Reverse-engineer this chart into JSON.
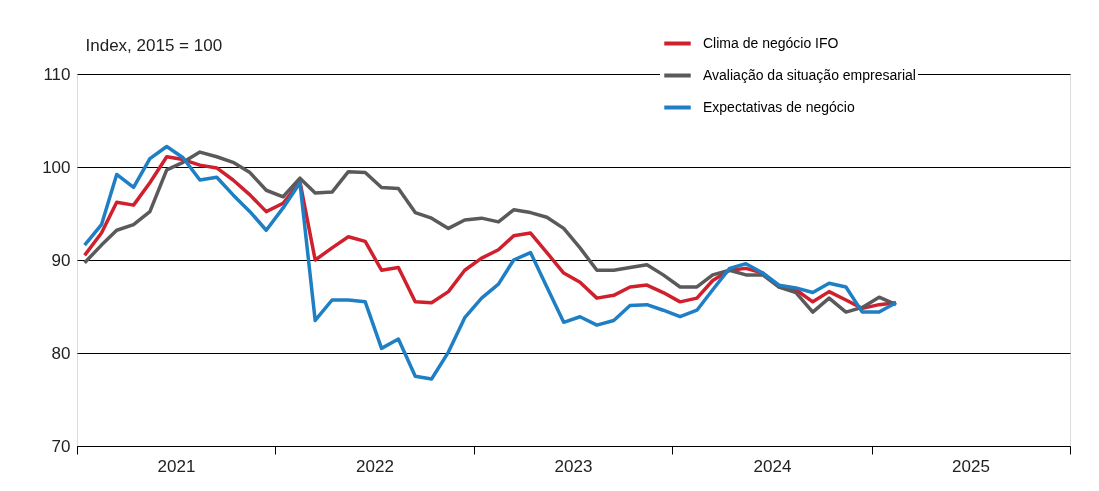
{
  "chart_data": {
    "type": "line",
    "ylabel": "Index, 2015 = 100",
    "x": [
      "2021-01-15",
      "2021-02-15",
      "2021-03-15",
      "2021-04-15",
      "2021-05-15",
      "2021-06-15",
      "2021-07-15",
      "2021-08-15",
      "2021-09-15",
      "2021-10-15",
      "2021-11-15",
      "2021-12-15",
      "2022-01-15",
      "2022-02-15",
      "2022-03-15",
      "2022-04-15",
      "2022-05-15",
      "2022-06-15",
      "2022-07-15",
      "2022-08-15",
      "2022-09-15",
      "2022-10-15",
      "2022-11-15",
      "2022-12-15",
      "2023-01-15",
      "2023-02-15",
      "2023-03-15",
      "2023-04-15",
      "2023-05-15",
      "2023-06-15",
      "2023-07-15",
      "2023-08-15",
      "2023-09-15",
      "2023-10-15",
      "2023-11-15",
      "2023-12-15",
      "2024-01-15",
      "2024-02-15",
      "2024-03-15",
      "2024-04-15",
      "2024-05-15",
      "2024-06-15",
      "2024-07-15",
      "2024-08-15",
      "2024-09-15",
      "2024-10-15",
      "2024-11-15",
      "2024-12-15",
      "2025-01-15",
      "2025-02-15"
    ],
    "series": [
      {
        "name": "Clima de negócio IFO",
        "color": "#d0202e",
        "values": [
          90.5,
          92.9,
          96.2,
          95.9,
          98.3,
          101.1,
          100.8,
          100.2,
          99.9,
          98.6,
          97.0,
          95.2,
          96.1,
          98.4,
          90.0,
          91.3,
          92.5,
          92.0,
          88.9,
          89.2,
          85.5,
          85.4,
          86.6,
          88.9,
          90.2,
          91.1,
          92.6,
          92.9,
          90.8,
          88.6,
          87.6,
          85.9,
          86.2,
          87.1,
          87.3,
          86.5,
          85.5,
          85.9,
          87.8,
          88.9,
          89.1,
          88.6,
          87.1,
          86.8,
          85.5,
          86.6,
          85.7,
          84.8,
          85.2,
          85.4
        ]
      },
      {
        "name": "Avaliação da situação empresarial",
        "color": "#5a5a5a",
        "values": [
          89.7,
          91.6,
          93.2,
          93.8,
          95.2,
          99.7,
          100.5,
          101.6,
          101.1,
          100.5,
          99.4,
          97.5,
          96.8,
          98.8,
          97.2,
          97.3,
          99.5,
          99.4,
          97.8,
          97.7,
          95.1,
          94.5,
          93.4,
          94.3,
          94.5,
          94.1,
          95.4,
          95.1,
          94.6,
          93.4,
          91.3,
          88.9,
          88.9,
          89.2,
          89.5,
          88.4,
          87.1,
          87.1,
          88.4,
          88.9,
          88.4,
          88.4,
          87.1,
          86.5,
          84.4,
          85.9,
          84.4,
          84.9,
          86.0,
          85.2
        ]
      },
      {
        "name": "Expectativas de negócio",
        "color": "#1f7fc4",
        "values": [
          91.6,
          93.8,
          99.2,
          97.8,
          100.9,
          102.2,
          101.0,
          98.6,
          98.9,
          97.0,
          95.2,
          93.2,
          95.6,
          98.3,
          83.5,
          85.7,
          85.7,
          85.5,
          80.5,
          81.5,
          77.5,
          77.2,
          80.1,
          83.8,
          85.9,
          87.4,
          90.0,
          90.8,
          87.1,
          83.3,
          83.9,
          83.0,
          83.5,
          85.1,
          85.2,
          84.6,
          83.9,
          84.6,
          86.8,
          89.1,
          89.6,
          88.6,
          87.3,
          87.0,
          86.5,
          87.5,
          87.1,
          84.4,
          84.4,
          85.4
        ]
      }
    ],
    "xlim": [
      "2021-01-01",
      "2026-01-01"
    ],
    "xticks": [
      {
        "value": "2021-01-01",
        "label": null
      },
      {
        "value": "2021-07-02",
        "label": "2021"
      },
      {
        "value": "2022-01-01",
        "label": null
      },
      {
        "value": "2022-07-02",
        "label": "2022"
      },
      {
        "value": "2023-01-01",
        "label": null
      },
      {
        "value": "2023-07-02",
        "label": "2023"
      },
      {
        "value": "2024-01-01",
        "label": null
      },
      {
        "value": "2024-07-02",
        "label": "2024"
      },
      {
        "value": "2025-01-01",
        "label": null
      },
      {
        "value": "2025-07-02",
        "label": "2025"
      },
      {
        "value": "2026-01-01",
        "label": null
      }
    ],
    "ylim": [
      70,
      110
    ],
    "yticks": [
      70,
      80,
      90,
      100,
      110
    ],
    "grid": "y",
    "legend": "top right",
    "line_style": "solid",
    "marker": "none"
  }
}
